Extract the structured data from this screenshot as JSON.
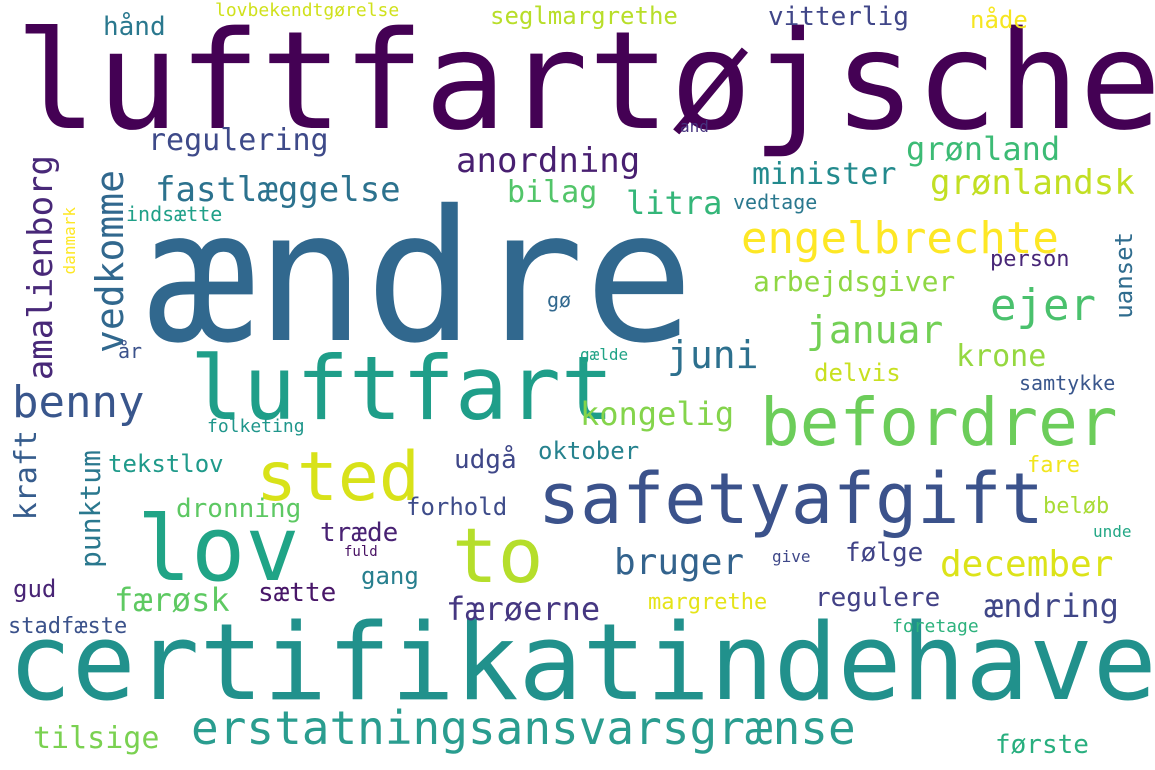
{
  "words": [
    {
      "text": "luftfartøjschef",
      "color": "#440154"
    },
    {
      "text": "ændre",
      "color": "#31688e"
    },
    {
      "text": "certifikatindehaver",
      "color": "#21918c"
    },
    {
      "text": "safetyafgift",
      "color": "#3b528b"
    },
    {
      "text": "luftfart",
      "color": "#1f9e89"
    },
    {
      "text": "befordrer",
      "color": "#6ccd5a"
    },
    {
      "text": "lov",
      "color": "#20a486"
    },
    {
      "text": "to",
      "color": "#b5de2b"
    },
    {
      "text": "sted",
      "color": "#d8e219"
    },
    {
      "text": "erstatningsansvarsgrænse",
      "color": "#2a9d8f"
    },
    {
      "text": "engelbrechte",
      "color": "#fde725"
    },
    {
      "text": "benny",
      "color": "#39568c"
    },
    {
      "text": "januar",
      "color": "#73d055"
    },
    {
      "text": "ejer",
      "color": "#4ac16d"
    },
    {
      "text": "anordning",
      "color": "#481f70"
    },
    {
      "text": "fastlæggelse",
      "color": "#2c728e"
    },
    {
      "text": "regulering",
      "color": "#3e4a89"
    },
    {
      "text": "grønland",
      "color": "#3cbb75"
    },
    {
      "text": "grønlandsk",
      "color": "#c2df23"
    },
    {
      "text": "minister",
      "color": "#238a8d"
    },
    {
      "text": "vedkomme",
      "color": "#31688e"
    },
    {
      "text": "amalienborg",
      "color": "#482878"
    },
    {
      "text": "juni",
      "color": "#2d708e"
    },
    {
      "text": "krone",
      "color": "#95d840"
    },
    {
      "text": "kongelig",
      "color": "#84d44b"
    },
    {
      "text": "december",
      "color": "#dce319"
    },
    {
      "text": "bruger",
      "color": "#33638d"
    },
    {
      "text": "ændring",
      "color": "#404788"
    },
    {
      "text": "færøerne",
      "color": "#453781"
    },
    {
      "text": "færøsk",
      "color": "#5ec962"
    },
    {
      "text": "tilsige",
      "color": "#7ad151"
    },
    {
      "text": "første",
      "color": "#29af7f"
    },
    {
      "text": "seglmargrethe",
      "color": "#b8de29"
    },
    {
      "text": "vitterlig",
      "color": "#404688"
    },
    {
      "text": "hånd",
      "color": "#2a788e"
    },
    {
      "text": "lovbekendtgørelse",
      "color": "#d0e11c"
    },
    {
      "text": "nåde",
      "color": "#f6e620"
    },
    {
      "text": "and",
      "color": "#46327e"
    },
    {
      "text": "bilag",
      "color": "#52c569"
    },
    {
      "text": "litra",
      "color": "#34b679"
    },
    {
      "text": "vedtage",
      "color": "#2a788e"
    },
    {
      "text": "indsætte",
      "color": "#1fa088"
    },
    {
      "text": "danmark",
      "color": "#fde725"
    },
    {
      "text": "arbejdsgiver",
      "color": "#8fd744"
    },
    {
      "text": "person",
      "color": "#482677"
    },
    {
      "text": "uanset",
      "color": "#2f6c8e"
    },
    {
      "text": "gø",
      "color": "#31688e"
    },
    {
      "text": "år",
      "color": "#3b528b"
    },
    {
      "text": "gælde",
      "color": "#20a386"
    },
    {
      "text": "delvis",
      "color": "#c8e020"
    },
    {
      "text": "samtykke",
      "color": "#39568c"
    },
    {
      "text": "folketing",
      "color": "#1f968b"
    },
    {
      "text": "kraft",
      "color": "#365c8d"
    },
    {
      "text": "punktum",
      "color": "#2a788e"
    },
    {
      "text": "tekstlov",
      "color": "#1f9a8a"
    },
    {
      "text": "udgå",
      "color": "#3f4788"
    },
    {
      "text": "oktober",
      "color": "#26828e"
    },
    {
      "text": "fare",
      "color": "#f1e51d"
    },
    {
      "text": "beløb",
      "color": "#a8db34"
    },
    {
      "text": "unde",
      "color": "#22a785"
    },
    {
      "text": "dronning",
      "color": "#5dc863"
    },
    {
      "text": "forhold",
      "color": "#3e4c8a"
    },
    {
      "text": "træde",
      "color": "#482173"
    },
    {
      "text": "fuld",
      "color": "#471063"
    },
    {
      "text": "give",
      "color": "#3f4889"
    },
    {
      "text": "følge",
      "color": "#414487"
    },
    {
      "text": "gang",
      "color": "#277f8e"
    },
    {
      "text": "sætte",
      "color": "#481668"
    },
    {
      "text": "gud",
      "color": "#482475"
    },
    {
      "text": "margrethe",
      "color": "#e5e419"
    },
    {
      "text": "regulere",
      "color": "#424186"
    },
    {
      "text": "stadfæste",
      "color": "#3b528b"
    },
    {
      "text": "foretage",
      "color": "#2db27d"
    }
  ]
}
